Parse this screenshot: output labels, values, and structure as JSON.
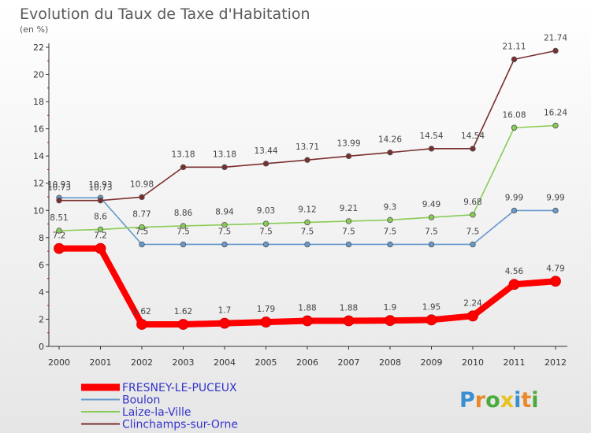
{
  "chart_data": {
    "type": "line",
    "title": "Evolution du Taux de Taxe d'Habitation",
    "subtitle": "(en %)",
    "x": [
      "2000",
      "2001",
      "2002",
      "2003",
      "2004",
      "2005",
      "2006",
      "2007",
      "2008",
      "2009",
      "2010",
      "2011",
      "2012"
    ],
    "ylim": [
      0,
      22
    ],
    "yticks": [
      "0",
      "2",
      "4",
      "6",
      "8",
      "10",
      "12",
      "14",
      "16",
      "18",
      "20",
      "22"
    ],
    "grid": false,
    "legend_position": "bottom-left",
    "series": [
      {
        "name": "FRESNEY-LE-PUCEUX",
        "color": "#ff0000",
        "values": [
          7.2,
          7.2,
          1.62,
          1.62,
          1.7,
          1.79,
          1.88,
          1.88,
          1.9,
          1.95,
          2.24,
          4.56,
          4.79
        ],
        "labels": [
          "7.2",
          "7.2",
          "1.62",
          "1.62",
          "1.7",
          "1.79",
          "1.88",
          "1.88",
          "1.9",
          "1.95",
          "2.24",
          "4.56",
          "4.79"
        ]
      },
      {
        "name": "Boulon",
        "color": "#6699cc",
        "values": [
          10.93,
          10.93,
          7.5,
          7.5,
          7.5,
          7.5,
          7.5,
          7.5,
          7.5,
          7.5,
          7.5,
          9.99,
          9.99
        ],
        "labels": [
          "10.93",
          "10.93",
          "7.5",
          "7.5",
          "7.5",
          "7.5",
          "7.5",
          "7.5",
          "7.5",
          "7.5",
          "7.5",
          "9.99",
          "9.99"
        ]
      },
      {
        "name": "Laize-la-Ville",
        "color": "#88cc55",
        "values": [
          8.51,
          8.6,
          8.77,
          8.86,
          8.94,
          9.03,
          9.12,
          9.21,
          9.3,
          9.49,
          9.68,
          16.08,
          16.24
        ],
        "labels": [
          "8.51",
          "8.6",
          "8.77",
          "8.86",
          "8.94",
          "9.03",
          "9.12",
          "9.21",
          "9.3",
          "9.49",
          "9.68",
          "16.08",
          "16.24"
        ]
      },
      {
        "name": "Clinchamps-sur-Orne",
        "color": "#7a2f2f",
        "values": [
          10.73,
          10.73,
          10.98,
          13.18,
          13.18,
          13.44,
          13.71,
          13.99,
          14.26,
          14.54,
          14.54,
          21.11,
          21.74
        ],
        "labels": [
          "10.73",
          "10.73",
          "10.98",
          "13.18",
          "13.18",
          "13.44",
          "13.71",
          "13.99",
          "14.26",
          "14.54",
          "14.54",
          "21.11",
          "21.74"
        ]
      }
    ]
  },
  "logo": {
    "letters": [
      {
        "ch": "P",
        "color": "#3a8fd0"
      },
      {
        "ch": "r",
        "color": "#e8892a"
      },
      {
        "ch": "o",
        "color": "#4aaa3c"
      },
      {
        "ch": "x",
        "color": "#e8c31f"
      },
      {
        "ch": "i",
        "color": "#3a8fd0"
      },
      {
        "ch": "t",
        "color": "#e8892a"
      },
      {
        "ch": "i",
        "color": "#4aaa3c"
      }
    ]
  }
}
